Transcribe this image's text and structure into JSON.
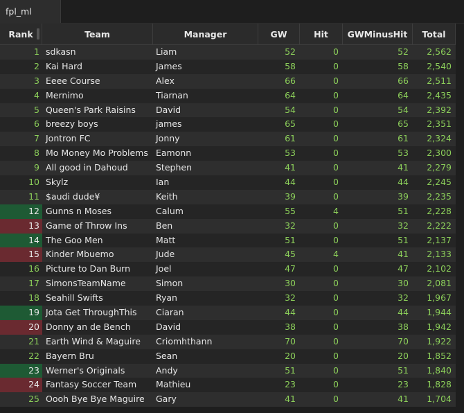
{
  "tab": {
    "label": "fpl_ml"
  },
  "columns": [
    "Rank",
    "Team",
    "Manager",
    "GW",
    "Hit",
    "GWMinusHit",
    "Total"
  ],
  "colors": {
    "rank_up": "#1e5a34",
    "rank_down": "#6a2a30",
    "number": "#8ccf5a"
  },
  "rows": [
    {
      "rank": "1",
      "team": "sdkasn",
      "manager": "Liam",
      "gw": "52",
      "hit": "0",
      "gwm": "52",
      "total": "2,562",
      "move": "none"
    },
    {
      "rank": "2",
      "team": "Kai Hard",
      "manager": "James",
      "gw": "58",
      "hit": "0",
      "gwm": "58",
      "total": "2,540",
      "move": "none"
    },
    {
      "rank": "3",
      "team": "Eeee Course",
      "manager": "Alex",
      "gw": "66",
      "hit": "0",
      "gwm": "66",
      "total": "2,511",
      "move": "none"
    },
    {
      "rank": "4",
      "team": "Mernimo",
      "manager": "Tiarnan",
      "gw": "64",
      "hit": "0",
      "gwm": "64",
      "total": "2,435",
      "move": "none"
    },
    {
      "rank": "5",
      "team": "Queen's Park Raisins",
      "manager": "David",
      "gw": "54",
      "hit": "0",
      "gwm": "54",
      "total": "2,392",
      "move": "none"
    },
    {
      "rank": "6",
      "team": "breezy boys",
      "manager": "james",
      "gw": "65",
      "hit": "0",
      "gwm": "65",
      "total": "2,351",
      "move": "none"
    },
    {
      "rank": "7",
      "team": "Jontron FC",
      "manager": "Jonny",
      "gw": "61",
      "hit": "0",
      "gwm": "61",
      "total": "2,324",
      "move": "none"
    },
    {
      "rank": "8",
      "team": "Mo Money Mo Problems",
      "manager": "Eamonn",
      "gw": "53",
      "hit": "0",
      "gwm": "53",
      "total": "2,300",
      "move": "none"
    },
    {
      "rank": "9",
      "team": "All good in Dahoud",
      "manager": "Stephen",
      "gw": "41",
      "hit": "0",
      "gwm": "41",
      "total": "2,279",
      "move": "none"
    },
    {
      "rank": "10",
      "team": "Skylz",
      "manager": "Ian",
      "gw": "44",
      "hit": "0",
      "gwm": "44",
      "total": "2,245",
      "move": "none"
    },
    {
      "rank": "11",
      "team": "$audi dude¥",
      "manager": "Keith",
      "gw": "39",
      "hit": "0",
      "gwm": "39",
      "total": "2,235",
      "move": "none"
    },
    {
      "rank": "12",
      "team": "Gunns n Moses",
      "manager": "Calum",
      "gw": "55",
      "hit": "4",
      "gwm": "51",
      "total": "2,228",
      "move": "up"
    },
    {
      "rank": "13",
      "team": "Game of Throw Ins",
      "manager": "Ben",
      "gw": "32",
      "hit": "0",
      "gwm": "32",
      "total": "2,222",
      "move": "down"
    },
    {
      "rank": "14",
      "team": "The Goo Men",
      "manager": "Matt",
      "gw": "51",
      "hit": "0",
      "gwm": "51",
      "total": "2,137",
      "move": "up"
    },
    {
      "rank": "15",
      "team": "Kinder Mbuemo",
      "manager": "Jude",
      "gw": "45",
      "hit": "4",
      "gwm": "41",
      "total": "2,133",
      "move": "down"
    },
    {
      "rank": "16",
      "team": "Picture to Dan Burn",
      "manager": "Joel",
      "gw": "47",
      "hit": "0",
      "gwm": "47",
      "total": "2,102",
      "move": "none"
    },
    {
      "rank": "17",
      "team": "SimonsTeamName",
      "manager": "Simon",
      "gw": "30",
      "hit": "0",
      "gwm": "30",
      "total": "2,081",
      "move": "none"
    },
    {
      "rank": "18",
      "team": "Seahill Swifts",
      "manager": "Ryan",
      "gw": "32",
      "hit": "0",
      "gwm": "32",
      "total": "1,967",
      "move": "none"
    },
    {
      "rank": "19",
      "team": "Jota Get ThroughThis",
      "manager": "Ciaran",
      "gw": "44",
      "hit": "0",
      "gwm": "44",
      "total": "1,944",
      "move": "up"
    },
    {
      "rank": "20",
      "team": "Donny an de Bench",
      "manager": "David",
      "gw": "38",
      "hit": "0",
      "gwm": "38",
      "total": "1,942",
      "move": "down"
    },
    {
      "rank": "21",
      "team": "Earth Wind & Maguire",
      "manager": "Criomhthann",
      "gw": "70",
      "hit": "0",
      "gwm": "70",
      "total": "1,922",
      "move": "none"
    },
    {
      "rank": "22",
      "team": "Bayern Bru",
      "manager": "Sean",
      "gw": "20",
      "hit": "0",
      "gwm": "20",
      "total": "1,852",
      "move": "none"
    },
    {
      "rank": "23",
      "team": "Werner's Originals",
      "manager": "Andy",
      "gw": "51",
      "hit": "0",
      "gwm": "51",
      "total": "1,840",
      "move": "up"
    },
    {
      "rank": "24",
      "team": "Fantasy Soccer Team",
      "manager": "Mathieu",
      "gw": "23",
      "hit": "0",
      "gwm": "23",
      "total": "1,828",
      "move": "down"
    },
    {
      "rank": "25",
      "team": "Oooh Bye Bye Maguire",
      "manager": "Gary",
      "gw": "41",
      "hit": "0",
      "gwm": "41",
      "total": "1,704",
      "move": "none"
    }
  ]
}
